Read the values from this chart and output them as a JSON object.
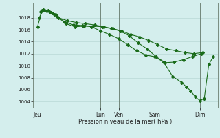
{
  "background_color": "#d4eeed",
  "grid_color": "#b8d8d5",
  "line_color": "#1a6b1a",
  "marker_color": "#1a6b1a",
  "ylabel_ticks": [
    1004,
    1006,
    1008,
    1010,
    1012,
    1014,
    1016,
    1018
  ],
  "ylim": [
    1003.0,
    1020.5
  ],
  "xlabel": "Pression niveau de la mer( hPa )",
  "xtick_labels": [
    "Jeu",
    "Lun",
    "Ven",
    "Sam",
    "Dim"
  ],
  "xtick_positions": [
    0,
    42,
    54,
    78,
    108
  ],
  "xlim": [
    -3,
    120
  ],
  "vline_positions": [
    0,
    42,
    54,
    78,
    108
  ],
  "series1_x": [
    0,
    3,
    6,
    9,
    12,
    18,
    24,
    30,
    36,
    42,
    48,
    54,
    60,
    66,
    72,
    78,
    84,
    90,
    96,
    99,
    102,
    105,
    108,
    111,
    114,
    117
  ],
  "series1_y": [
    1016.5,
    1019.2,
    1019.1,
    1018.9,
    1018.6,
    1017.3,
    1016.8,
    1016.7,
    1016.5,
    1015.8,
    1015.2,
    1014.5,
    1013.5,
    1012.5,
    1011.8,
    1011.5,
    1010.6,
    1008.2,
    1007.2,
    1006.5,
    1005.8,
    1004.8,
    1004.2,
    1004.5,
    1010.2,
    1011.5
  ],
  "series2_x": [
    1,
    4,
    7,
    10,
    13,
    19,
    25,
    31,
    37,
    43,
    49,
    55,
    61,
    67,
    73,
    79,
    85,
    91,
    97,
    103,
    109
  ],
  "series2_y": [
    1018.0,
    1019.3,
    1019.2,
    1018.8,
    1018.2,
    1017.0,
    1016.5,
    1016.6,
    1016.6,
    1016.5,
    1016.2,
    1015.8,
    1015.0,
    1013.8,
    1012.8,
    1011.5,
    1010.5,
    1010.6,
    1011.0,
    1011.5,
    1012.0
  ],
  "series3_x": [
    2,
    5,
    8,
    11,
    14,
    20,
    26,
    32,
    38,
    44,
    50,
    56,
    62,
    68,
    74,
    80,
    86,
    92,
    98,
    104,
    110
  ],
  "series3_y": [
    1019.0,
    1019.2,
    1019.0,
    1018.5,
    1018.0,
    1017.5,
    1017.2,
    1017.0,
    1016.8,
    1016.5,
    1016.2,
    1015.8,
    1015.2,
    1014.8,
    1014.2,
    1013.5,
    1012.8,
    1012.5,
    1012.2,
    1012.0,
    1012.2
  ]
}
